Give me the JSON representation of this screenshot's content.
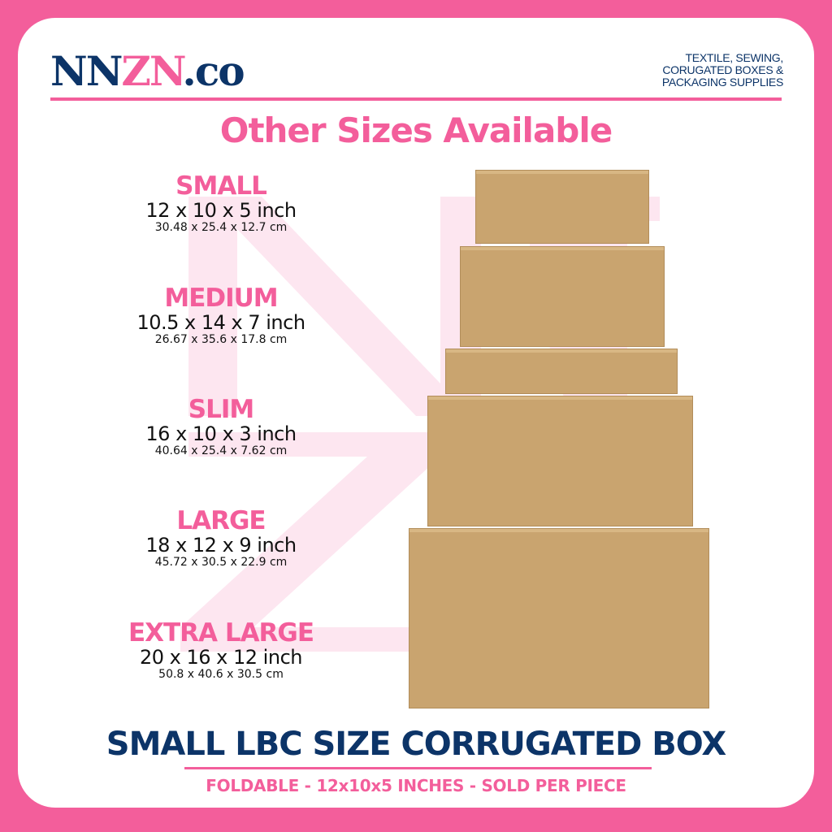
{
  "brand": {
    "logo_text": "NNZN.co",
    "tagline": [
      "TEXTILE, SEWING,",
      "CORUGATED BOXES &",
      "PACKAGING SUPPLIES"
    ]
  },
  "heading": "Other Sizes Available",
  "sizes": [
    {
      "name": "SMALL",
      "inch": "12 x 10 x 5 inch",
      "cm": "30.48 x 25.4 x 12.7 cm"
    },
    {
      "name": "MEDIUM",
      "inch": "10.5 x 14 x 7 inch",
      "cm": "26.67 x 35.6 x 17.8 cm"
    },
    {
      "name": "SLIM",
      "inch": "16 x 10 x 3 inch",
      "cm": "40.64 x 25.4 x 7.62 cm"
    },
    {
      "name": "LARGE",
      "inch": "18 x 12 x 9 inch",
      "cm": "45.72 x 30.5 x 22.9 cm"
    },
    {
      "name": "EXTRA LARGE",
      "inch": "20 x 16 x 12 inch",
      "cm": "50.8 x 40.6 x 30.5 cm"
    }
  ],
  "product_title": "SMALL LBC SIZE CORRUGATED BOX",
  "product_subtitle": "FOLDABLE - 12x10x5 INCHES - SOLD PER PIECE",
  "colors": {
    "pink": "#f35e9b",
    "navy": "#0c3468",
    "kraft": "#c9a46f"
  }
}
